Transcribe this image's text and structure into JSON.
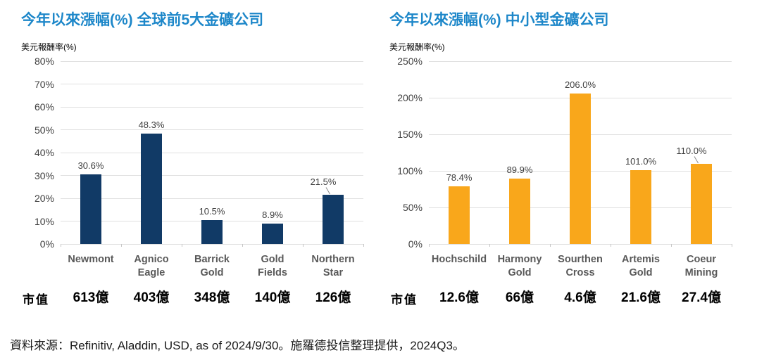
{
  "footer": {
    "source_text": "資料來源：Refinitiv, Aladdin, USD, as of 2024/9/30。施羅德投信整理提供，2024Q3。"
  },
  "market_cap_label": "市值",
  "colors": {
    "title_blue": "#1D87C9",
    "navy_bar": "#113A66",
    "orange_bar": "#F9A71B",
    "gridline": "#E0E0E0",
    "axis_tick_text": "#404040",
    "category_text": "#595959",
    "value_label_text": "#404040",
    "market_cap_text": "#000000",
    "footer_text": "#1A1A1A"
  },
  "chart_data": [
    {
      "type": "bar",
      "title": "今年以來漲幅(%) 全球前5大金礦公司",
      "ylabel": "美元報酬率(%)",
      "categories": [
        "Newmont",
        "Agnico Eagle",
        "Barrick Gold",
        "Gold Fields",
        "Northern Star"
      ],
      "values": [
        30.6,
        48.3,
        10.5,
        8.9,
        21.5
      ],
      "value_labels": [
        "30.6%",
        "48.3%",
        "10.5%",
        "8.9%",
        "21.5%"
      ],
      "market_caps": [
        "613億",
        "403億",
        "348億",
        "140億",
        "126億"
      ],
      "ylim": [
        0,
        80
      ],
      "yticks": [
        0,
        10,
        20,
        30,
        40,
        50,
        60,
        70,
        80
      ],
      "grid": true,
      "legend": "none",
      "bar_color": "#113A66",
      "leader_line_indexes": [
        4
      ]
    },
    {
      "type": "bar",
      "title": "今年以來漲幅(%) 中小型金礦公司",
      "ylabel": "美元報酬率(%)",
      "categories": [
        "Hochschild",
        "Harmony Gold",
        "Sourthen Cross",
        "Artemis Gold",
        "Coeur Mining"
      ],
      "values": [
        78.4,
        89.9,
        206.0,
        101.0,
        110.0
      ],
      "value_labels": [
        "78.4%",
        "89.9%",
        "206.0%",
        "101.0%",
        "110.0%"
      ],
      "market_caps": [
        "12.6億",
        "66億",
        "4.6億",
        "21.6億",
        "27.4億"
      ],
      "ylim": [
        0,
        250
      ],
      "yticks": [
        0,
        50,
        100,
        150,
        200,
        250
      ],
      "grid": true,
      "legend": "none",
      "bar_color": "#F9A71B",
      "leader_line_indexes": [
        4
      ]
    }
  ]
}
